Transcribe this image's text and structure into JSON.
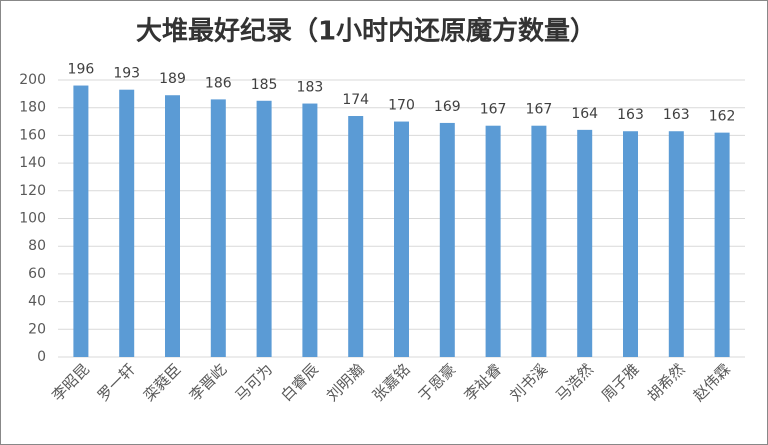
{
  "chart_data": {
    "type": "bar",
    "title": "大堆最好纪录（1小时内还原魔方数量）",
    "categories": [
      "李昭昆",
      "罗一轩",
      "栾蕤臣",
      "李晋屹",
      "马可为",
      "白睿辰",
      "刘明瀚",
      "张嘉铭",
      "于恩豪",
      "李祉睿",
      "刘书溪",
      "马浩然",
      "周子雅",
      "胡希然",
      "赵伟霖"
    ],
    "values": [
      196,
      193,
      189,
      186,
      185,
      183,
      174,
      170,
      169,
      167,
      167,
      164,
      163,
      163,
      162
    ],
    "color": "#5b9bd5",
    "ylim": [
      0,
      200
    ],
    "yticks": [
      0,
      20,
      40,
      60,
      80,
      100,
      120,
      140,
      160,
      180,
      200
    ],
    "grid": true
  }
}
